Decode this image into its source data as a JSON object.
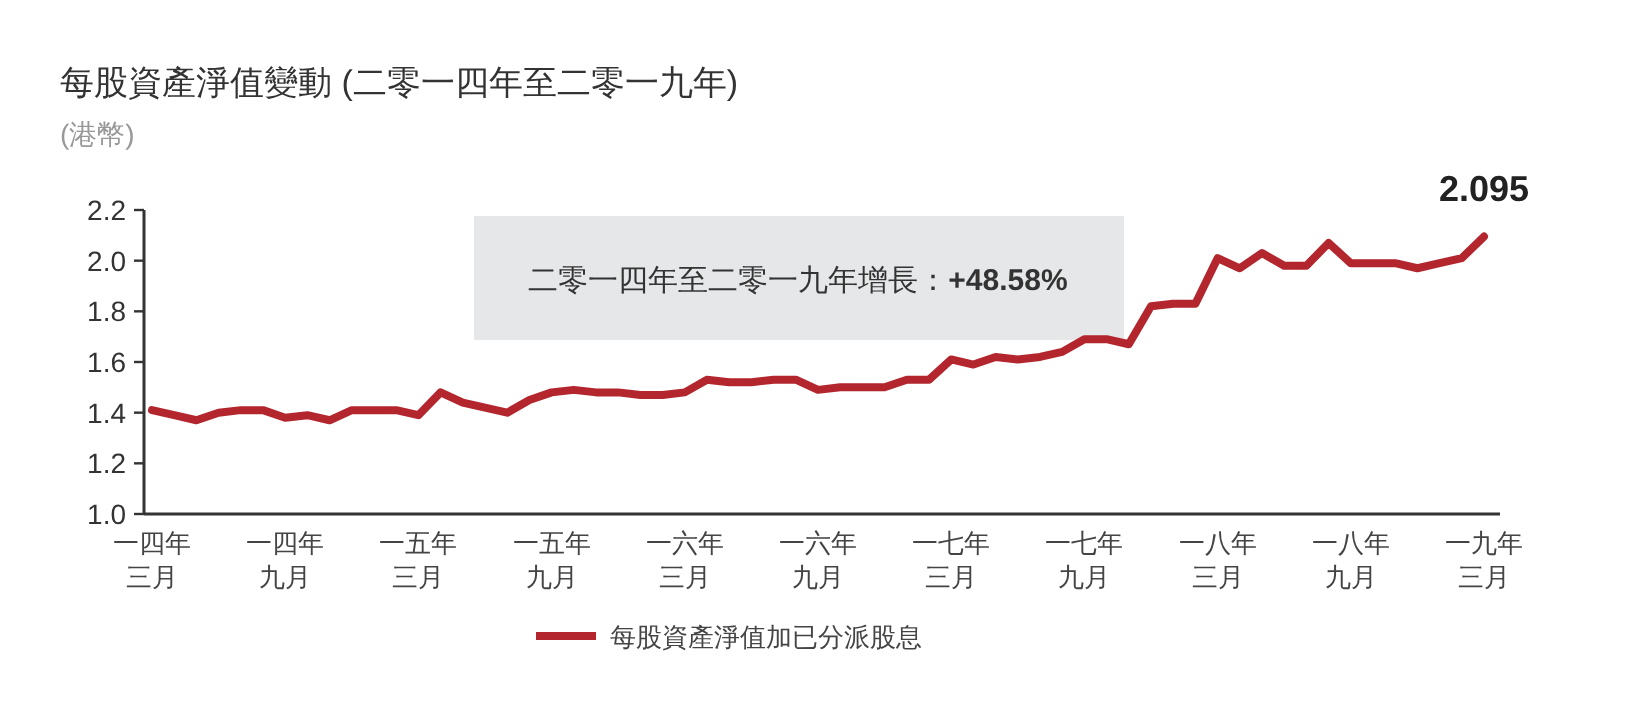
{
  "chart_data": {
    "type": "line",
    "title": "每股資產淨值變動 (二零一四年至二零一九年)",
    "subtitle": "(港幣)",
    "annotations": [
      "二零一四年至二零一九年增長：+48.58%"
    ],
    "categories": [
      "一四年三月",
      null,
      null,
      null,
      null,
      null,
      "一四年九月",
      null,
      null,
      null,
      null,
      null,
      "一五年三月",
      null,
      null,
      null,
      null,
      null,
      "一五年九月",
      null,
      null,
      null,
      null,
      null,
      "一六年三月",
      null,
      null,
      null,
      null,
      null,
      "一六年九月",
      null,
      null,
      null,
      null,
      null,
      "一七年三月",
      null,
      null,
      null,
      null,
      null,
      "一七年九月",
      null,
      null,
      null,
      null,
      null,
      "一八年三月",
      null,
      null,
      null,
      null,
      null,
      "一八年九月",
      null,
      null,
      null,
      null,
      null,
      "一九年三月"
    ],
    "series": [
      {
        "name": "每股資產淨值加已分派股息",
        "color": "#b3262e",
        "values": [
          1.41,
          1.39,
          1.37,
          1.4,
          1.41,
          1.41,
          1.38,
          1.39,
          1.37,
          1.41,
          1.41,
          1.41,
          1.39,
          1.48,
          1.44,
          1.42,
          1.4,
          1.45,
          1.48,
          1.49,
          1.48,
          1.48,
          1.47,
          1.47,
          1.48,
          1.53,
          1.52,
          1.52,
          1.53,
          1.53,
          1.49,
          1.5,
          1.5,
          1.5,
          1.53,
          1.53,
          1.61,
          1.59,
          1.62,
          1.61,
          1.62,
          1.64,
          1.69,
          1.69,
          1.67,
          1.82,
          1.83,
          1.83,
          2.01,
          1.97,
          2.03,
          1.98,
          1.98,
          2.07,
          1.99,
          1.99,
          1.99,
          1.97,
          1.99,
          2.01,
          2.095
        ],
        "value_labels": [
          null,
          null,
          null,
          null,
          null,
          null,
          null,
          null,
          null,
          null,
          null,
          null,
          null,
          null,
          null,
          null,
          null,
          null,
          null,
          null,
          null,
          null,
          null,
          null,
          null,
          null,
          null,
          null,
          null,
          null,
          null,
          null,
          null,
          null,
          null,
          null,
          null,
          null,
          null,
          null,
          null,
          null,
          null,
          null,
          null,
          null,
          null,
          null,
          null,
          null,
          null,
          null,
          null,
          null,
          null,
          null,
          null,
          null,
          null,
          null,
          "2.095"
        ]
      }
    ],
    "ylim": [
      1.0,
      2.2
    ],
    "yticks": [
      {
        "value": 1.0,
        "label": "1.0"
      },
      {
        "value": 1.2,
        "label": "1.2"
      },
      {
        "value": 1.4,
        "label": "1.4"
      },
      {
        "value": 1.6,
        "label": "1.6"
      },
      {
        "value": 1.8,
        "label": "1.8"
      },
      {
        "value": 2.0,
        "label": "2.0"
      },
      {
        "value": 2.2,
        "label": "2.2"
      }
    ],
    "legend": "bottom",
    "marker": "none",
    "line_style": "solid"
  }
}
